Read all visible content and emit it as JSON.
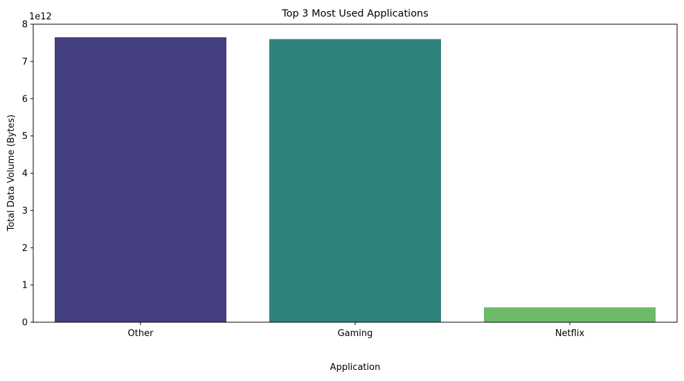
{
  "chart_data": {
    "type": "bar",
    "title": "Top 3 Most Used Applications",
    "xlabel": "Application",
    "ylabel": "Total Data Volume (Bytes)",
    "offset_label": "1e12",
    "categories": [
      "Other",
      "Gaming",
      "Netflix"
    ],
    "values": [
      7650000000000.0,
      7600000000000.0,
      400000000000.0
    ],
    "colors": [
      "#443f7f",
      "#2e837d",
      "#6cba6a"
    ],
    "ylim": [
      0,
      8000000000000.0
    ],
    "yticks": [
      0,
      1000000000000.0,
      2000000000000.0,
      3000000000000.0,
      4000000000000.0,
      5000000000000.0,
      6000000000000.0,
      7000000000000.0,
      8000000000000.0
    ],
    "ytick_labels": [
      "0",
      "1",
      "2",
      "3",
      "4",
      "5",
      "6",
      "7",
      "8"
    ],
    "grid": false,
    "legend": "none"
  }
}
